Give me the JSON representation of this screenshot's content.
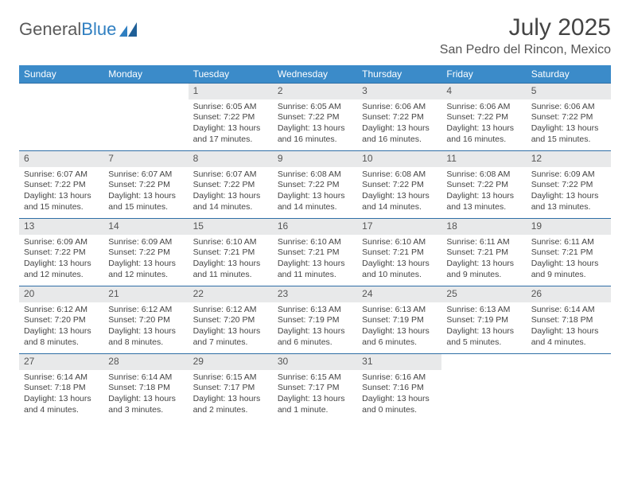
{
  "brand": {
    "part1": "General",
    "part2": "Blue"
  },
  "title": "July 2025",
  "location": "San Pedro del Rincon, Mexico",
  "colors": {
    "header_bg": "#3b8bc9",
    "row_border": "#2f6fa6",
    "daynum_bg": "#e8e9ea",
    "text": "#444444",
    "brand_gray": "#5a5a5a",
    "brand_blue": "#2f7fc1"
  },
  "weekdays": [
    "Sunday",
    "Monday",
    "Tuesday",
    "Wednesday",
    "Thursday",
    "Friday",
    "Saturday"
  ],
  "weeks": [
    [
      {
        "n": "",
        "sr": "",
        "ss": "",
        "dl": ""
      },
      {
        "n": "",
        "sr": "",
        "ss": "",
        "dl": ""
      },
      {
        "n": "1",
        "sr": "Sunrise: 6:05 AM",
        "ss": "Sunset: 7:22 PM",
        "dl": "Daylight: 13 hours and 17 minutes."
      },
      {
        "n": "2",
        "sr": "Sunrise: 6:05 AM",
        "ss": "Sunset: 7:22 PM",
        "dl": "Daylight: 13 hours and 16 minutes."
      },
      {
        "n": "3",
        "sr": "Sunrise: 6:06 AM",
        "ss": "Sunset: 7:22 PM",
        "dl": "Daylight: 13 hours and 16 minutes."
      },
      {
        "n": "4",
        "sr": "Sunrise: 6:06 AM",
        "ss": "Sunset: 7:22 PM",
        "dl": "Daylight: 13 hours and 16 minutes."
      },
      {
        "n": "5",
        "sr": "Sunrise: 6:06 AM",
        "ss": "Sunset: 7:22 PM",
        "dl": "Daylight: 13 hours and 15 minutes."
      }
    ],
    [
      {
        "n": "6",
        "sr": "Sunrise: 6:07 AM",
        "ss": "Sunset: 7:22 PM",
        "dl": "Daylight: 13 hours and 15 minutes."
      },
      {
        "n": "7",
        "sr": "Sunrise: 6:07 AM",
        "ss": "Sunset: 7:22 PM",
        "dl": "Daylight: 13 hours and 15 minutes."
      },
      {
        "n": "8",
        "sr": "Sunrise: 6:07 AM",
        "ss": "Sunset: 7:22 PM",
        "dl": "Daylight: 13 hours and 14 minutes."
      },
      {
        "n": "9",
        "sr": "Sunrise: 6:08 AM",
        "ss": "Sunset: 7:22 PM",
        "dl": "Daylight: 13 hours and 14 minutes."
      },
      {
        "n": "10",
        "sr": "Sunrise: 6:08 AM",
        "ss": "Sunset: 7:22 PM",
        "dl": "Daylight: 13 hours and 14 minutes."
      },
      {
        "n": "11",
        "sr": "Sunrise: 6:08 AM",
        "ss": "Sunset: 7:22 PM",
        "dl": "Daylight: 13 hours and 13 minutes."
      },
      {
        "n": "12",
        "sr": "Sunrise: 6:09 AM",
        "ss": "Sunset: 7:22 PM",
        "dl": "Daylight: 13 hours and 13 minutes."
      }
    ],
    [
      {
        "n": "13",
        "sr": "Sunrise: 6:09 AM",
        "ss": "Sunset: 7:22 PM",
        "dl": "Daylight: 13 hours and 12 minutes."
      },
      {
        "n": "14",
        "sr": "Sunrise: 6:09 AM",
        "ss": "Sunset: 7:22 PM",
        "dl": "Daylight: 13 hours and 12 minutes."
      },
      {
        "n": "15",
        "sr": "Sunrise: 6:10 AM",
        "ss": "Sunset: 7:21 PM",
        "dl": "Daylight: 13 hours and 11 minutes."
      },
      {
        "n": "16",
        "sr": "Sunrise: 6:10 AM",
        "ss": "Sunset: 7:21 PM",
        "dl": "Daylight: 13 hours and 11 minutes."
      },
      {
        "n": "17",
        "sr": "Sunrise: 6:10 AM",
        "ss": "Sunset: 7:21 PM",
        "dl": "Daylight: 13 hours and 10 minutes."
      },
      {
        "n": "18",
        "sr": "Sunrise: 6:11 AM",
        "ss": "Sunset: 7:21 PM",
        "dl": "Daylight: 13 hours and 9 minutes."
      },
      {
        "n": "19",
        "sr": "Sunrise: 6:11 AM",
        "ss": "Sunset: 7:21 PM",
        "dl": "Daylight: 13 hours and 9 minutes."
      }
    ],
    [
      {
        "n": "20",
        "sr": "Sunrise: 6:12 AM",
        "ss": "Sunset: 7:20 PM",
        "dl": "Daylight: 13 hours and 8 minutes."
      },
      {
        "n": "21",
        "sr": "Sunrise: 6:12 AM",
        "ss": "Sunset: 7:20 PM",
        "dl": "Daylight: 13 hours and 8 minutes."
      },
      {
        "n": "22",
        "sr": "Sunrise: 6:12 AM",
        "ss": "Sunset: 7:20 PM",
        "dl": "Daylight: 13 hours and 7 minutes."
      },
      {
        "n": "23",
        "sr": "Sunrise: 6:13 AM",
        "ss": "Sunset: 7:19 PM",
        "dl": "Daylight: 13 hours and 6 minutes."
      },
      {
        "n": "24",
        "sr": "Sunrise: 6:13 AM",
        "ss": "Sunset: 7:19 PM",
        "dl": "Daylight: 13 hours and 6 minutes."
      },
      {
        "n": "25",
        "sr": "Sunrise: 6:13 AM",
        "ss": "Sunset: 7:19 PM",
        "dl": "Daylight: 13 hours and 5 minutes."
      },
      {
        "n": "26",
        "sr": "Sunrise: 6:14 AM",
        "ss": "Sunset: 7:18 PM",
        "dl": "Daylight: 13 hours and 4 minutes."
      }
    ],
    [
      {
        "n": "27",
        "sr": "Sunrise: 6:14 AM",
        "ss": "Sunset: 7:18 PM",
        "dl": "Daylight: 13 hours and 4 minutes."
      },
      {
        "n": "28",
        "sr": "Sunrise: 6:14 AM",
        "ss": "Sunset: 7:18 PM",
        "dl": "Daylight: 13 hours and 3 minutes."
      },
      {
        "n": "29",
        "sr": "Sunrise: 6:15 AM",
        "ss": "Sunset: 7:17 PM",
        "dl": "Daylight: 13 hours and 2 minutes."
      },
      {
        "n": "30",
        "sr": "Sunrise: 6:15 AM",
        "ss": "Sunset: 7:17 PM",
        "dl": "Daylight: 13 hours and 1 minute."
      },
      {
        "n": "31",
        "sr": "Sunrise: 6:16 AM",
        "ss": "Sunset: 7:16 PM",
        "dl": "Daylight: 13 hours and 0 minutes."
      },
      {
        "n": "",
        "sr": "",
        "ss": "",
        "dl": ""
      },
      {
        "n": "",
        "sr": "",
        "ss": "",
        "dl": ""
      }
    ]
  ]
}
